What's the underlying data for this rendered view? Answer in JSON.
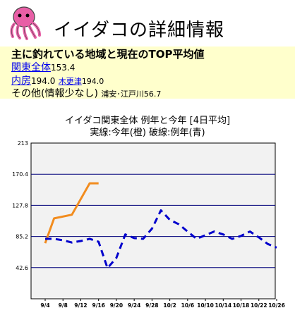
{
  "page": {
    "title": "イイダコの詳細情報",
    "subheading": "主に釣れている地域と現在のTOP平均値",
    "regions": [
      {
        "link": "関東全体",
        "value": "153.4"
      },
      {
        "link": "内房",
        "value": "194.0",
        "sub_link": "木更津",
        "sub_value": "194.0"
      },
      {
        "label": "その他(情報少なし)",
        "detail": "浦安･江戸川56.7"
      }
    ]
  },
  "chart_data": {
    "type": "line",
    "title": "イイダコ関東全体 例年と今年 [4日平均]",
    "subtitle": "実線:今年(橙) 破線:例年(青)",
    "categories": [
      "9/4",
      "9/8",
      "9/12",
      "9/16",
      "9/20",
      "9/24",
      "9/28",
      "10/2",
      "10/6",
      "10/10",
      "10/14",
      "10/18",
      "10/22",
      "10/26"
    ],
    "yticks": [
      "213",
      "170.4",
      "127.8",
      "85.2",
      "42.6"
    ],
    "ylim": [
      0,
      213
    ],
    "series": [
      {
        "name": "今年",
        "color": "#f28c1e",
        "style": "solid",
        "x": [
          0,
          0.5,
          1.5,
          2.5,
          3.0
        ],
        "values": [
          76,
          110,
          115,
          158,
          158
        ]
      },
      {
        "name": "例年",
        "color": "#0000cc",
        "style": "dashed",
        "x": [
          0,
          0.5,
          1,
          1.5,
          2,
          2.5,
          3,
          3.5,
          4,
          4.5,
          5,
          5.5,
          6,
          6.5,
          7,
          7.5,
          8,
          8.5,
          9,
          9.5,
          10,
          10.5,
          11,
          11.5,
          12,
          12.5,
          13
        ],
        "values": [
          82,
          82,
          80,
          77,
          79,
          82,
          78,
          42,
          56,
          88,
          83,
          82,
          96,
          121,
          108,
          102,
          92,
          82,
          87,
          92,
          88,
          82,
          86,
          92,
          84,
          75,
          70
        ]
      }
    ],
    "grid": true
  }
}
